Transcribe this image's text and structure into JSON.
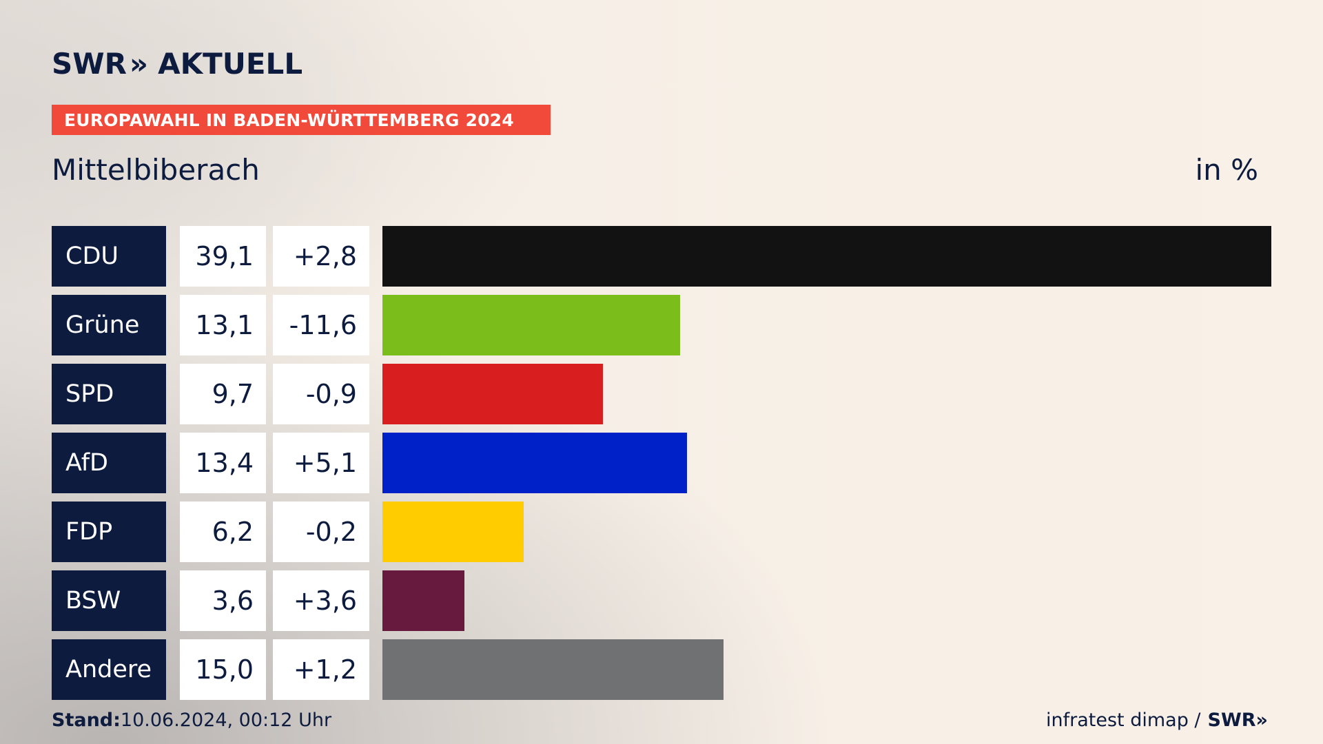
{
  "header": {
    "logo_swr": "SWR",
    "logo_chevrons": "»",
    "logo_text": "AKTUELL",
    "banner": "EUROPAWAHL IN BADEN-WÜRTTEMBERG 2024",
    "region": "Mittelbiberach",
    "unit": "in %"
  },
  "colors": {
    "navy": "#0d1b3e",
    "banner": "#f24a3a"
  },
  "chart_data": {
    "type": "bar",
    "orientation": "horizontal",
    "categories": [
      "CDU",
      "Grüne",
      "SPD",
      "AfD",
      "FDP",
      "BSW",
      "Andere"
    ],
    "values": [
      39.1,
      13.1,
      9.7,
      13.4,
      6.2,
      3.6,
      15.0
    ],
    "value_labels": [
      "39,1",
      "13,1",
      "9,7",
      "13,4",
      "6,2",
      "3,6",
      "15,0"
    ],
    "change_labels": [
      "+2,8",
      "-11,6",
      "-0,9",
      "+5,1",
      "-0,2",
      "+3,6",
      "+1,2"
    ],
    "colors": [
      "#121212",
      "#7bbe1c",
      "#d81e1e",
      "#0020c8",
      "#ffcc00",
      "#681a3e",
      "#707173"
    ],
    "ylabel": "in %",
    "xlim": [
      0,
      39.1
    ]
  },
  "footer": {
    "stand_label": "Stand:",
    "stand_value": "10.06.2024, 00:12 Uhr",
    "source": "infratest dimap /",
    "source_logo": "SWR»"
  }
}
